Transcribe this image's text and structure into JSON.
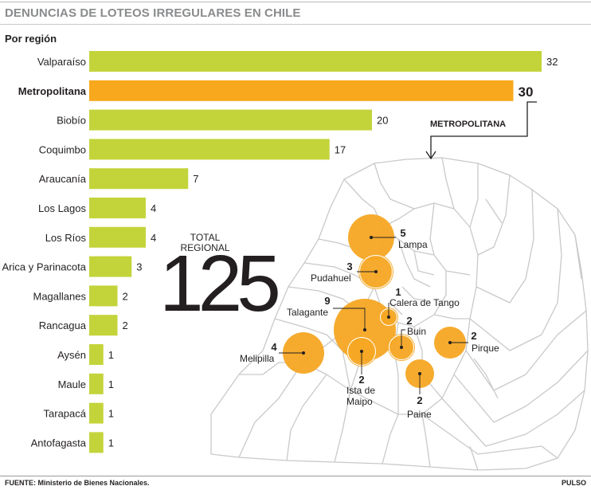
{
  "title": "DENUNCIAS DE LOTEOS IRREGULARES EN CHILE",
  "subtitle": "Por región",
  "total": {
    "label_line1": "TOTAL",
    "label_line2": "REGIONAL",
    "value": "125"
  },
  "map": {
    "title": "METROPOLITANA",
    "bubbles": [
      {
        "name": "Lampa",
        "value": "5"
      },
      {
        "name": "Pudahuel",
        "value": "3"
      },
      {
        "name": "Calera de Tango",
        "value": "1"
      },
      {
        "name": "Talagante",
        "value": "9"
      },
      {
        "name": "Buin",
        "value": "2"
      },
      {
        "name": "Pirque",
        "value": "2"
      },
      {
        "name": "Melipilla",
        "value": "4"
      },
      {
        "name": "Ista de",
        "name2": "Maipo",
        "value": "2"
      },
      {
        "name": "Paine",
        "value": "2"
      }
    ]
  },
  "footer": {
    "source": "FUENTE: Ministerio de Bienes Nacionales.",
    "brand": "PULSO"
  },
  "colors": {
    "bar": "#c3d43b",
    "highlight": "#f7a81c",
    "bubble": "#f6a623",
    "title": "#8a8b8d"
  },
  "chart_data": {
    "type": "bar",
    "orientation": "horizontal",
    "categories": [
      "Valparaíso",
      "Metropolitana",
      "Biobío",
      "Coquimbo",
      "Araucanía",
      "Los Lagos",
      "Los Ríos",
      "Arica y Parinacota",
      "Magallanes",
      "Rancagua",
      "Aysén",
      "Maule",
      "Tarapacá",
      "Antofagasta"
    ],
    "values": [
      32,
      30,
      20,
      17,
      7,
      4,
      4,
      3,
      2,
      2,
      1,
      1,
      1,
      1
    ],
    "highlight": "Metropolitana",
    "title": "DENUNCIAS DE LOTEOS IRREGULARES EN CHILE",
    "subtitle": "Por región",
    "xlim": [
      0,
      32
    ],
    "grid": false,
    "legend": "none"
  }
}
